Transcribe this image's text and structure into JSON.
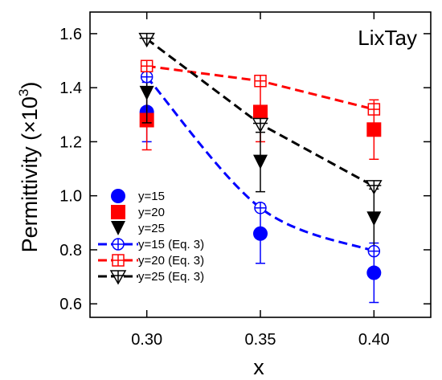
{
  "chart_data": {
    "type": "scatter",
    "annotation": "LixTay",
    "xlabel": "x",
    "ylabel_main": "Permittivity (×10",
    "ylabel_exp": "3",
    "ylabel_close": ")",
    "xlim": [
      0.275,
      0.425
    ],
    "ylim": [
      0.55,
      1.68
    ],
    "xticks": [
      0.3,
      0.35,
      0.4
    ],
    "xtick_labels": [
      "0.30",
      "0.35",
      "0.40"
    ],
    "yticks": [
      0.6,
      0.8,
      1.0,
      1.2,
      1.4,
      1.6
    ],
    "ytick_labels": [
      "0.6",
      "0.8",
      "1.0",
      "1.2",
      "1.4",
      "1.6"
    ],
    "grid": false,
    "legend_position": "bottom-left",
    "series": [
      {
        "name": "y=15",
        "kind": "measured",
        "marker": "circle",
        "color": "#0000ff",
        "x": [
          0.3,
          0.35,
          0.4
        ],
        "y": [
          1.31,
          0.86,
          0.715
        ],
        "err": [
          0.11,
          0.11,
          0.11
        ]
      },
      {
        "name": "y=20",
        "kind": "measured",
        "marker": "square",
        "color": "#ff0000",
        "x": [
          0.3,
          0.35,
          0.4
        ],
        "y": [
          1.28,
          1.31,
          1.245
        ],
        "err": [
          0.11,
          0.11,
          0.11
        ]
      },
      {
        "name": "y=25",
        "kind": "measured",
        "marker": "triangle-down",
        "color": "#000000",
        "x": [
          0.3,
          0.35,
          0.4
        ],
        "y": [
          1.38,
          1.125,
          0.915
        ],
        "err": [
          0.11,
          0.11,
          0.11
        ]
      },
      {
        "name": "y=15 (Eq. 3)",
        "kind": "model",
        "marker": "circle-plus-open",
        "color": "#0000ff",
        "x": [
          0.3,
          0.35,
          0.4
        ],
        "y": [
          1.44,
          0.955,
          0.795
        ]
      },
      {
        "name": "y=20 (Eq. 3)",
        "kind": "model",
        "marker": "square-plus-open",
        "color": "#ff0000",
        "x": [
          0.3,
          0.35,
          0.4
        ],
        "y": [
          1.48,
          1.425,
          1.32
        ]
      },
      {
        "name": "y=25 (Eq. 3)",
        "kind": "model",
        "marker": "triangle-down-open",
        "color": "#000000",
        "x": [
          0.3,
          0.35,
          0.4
        ],
        "y": [
          1.58,
          1.265,
          1.035
        ]
      }
    ]
  }
}
